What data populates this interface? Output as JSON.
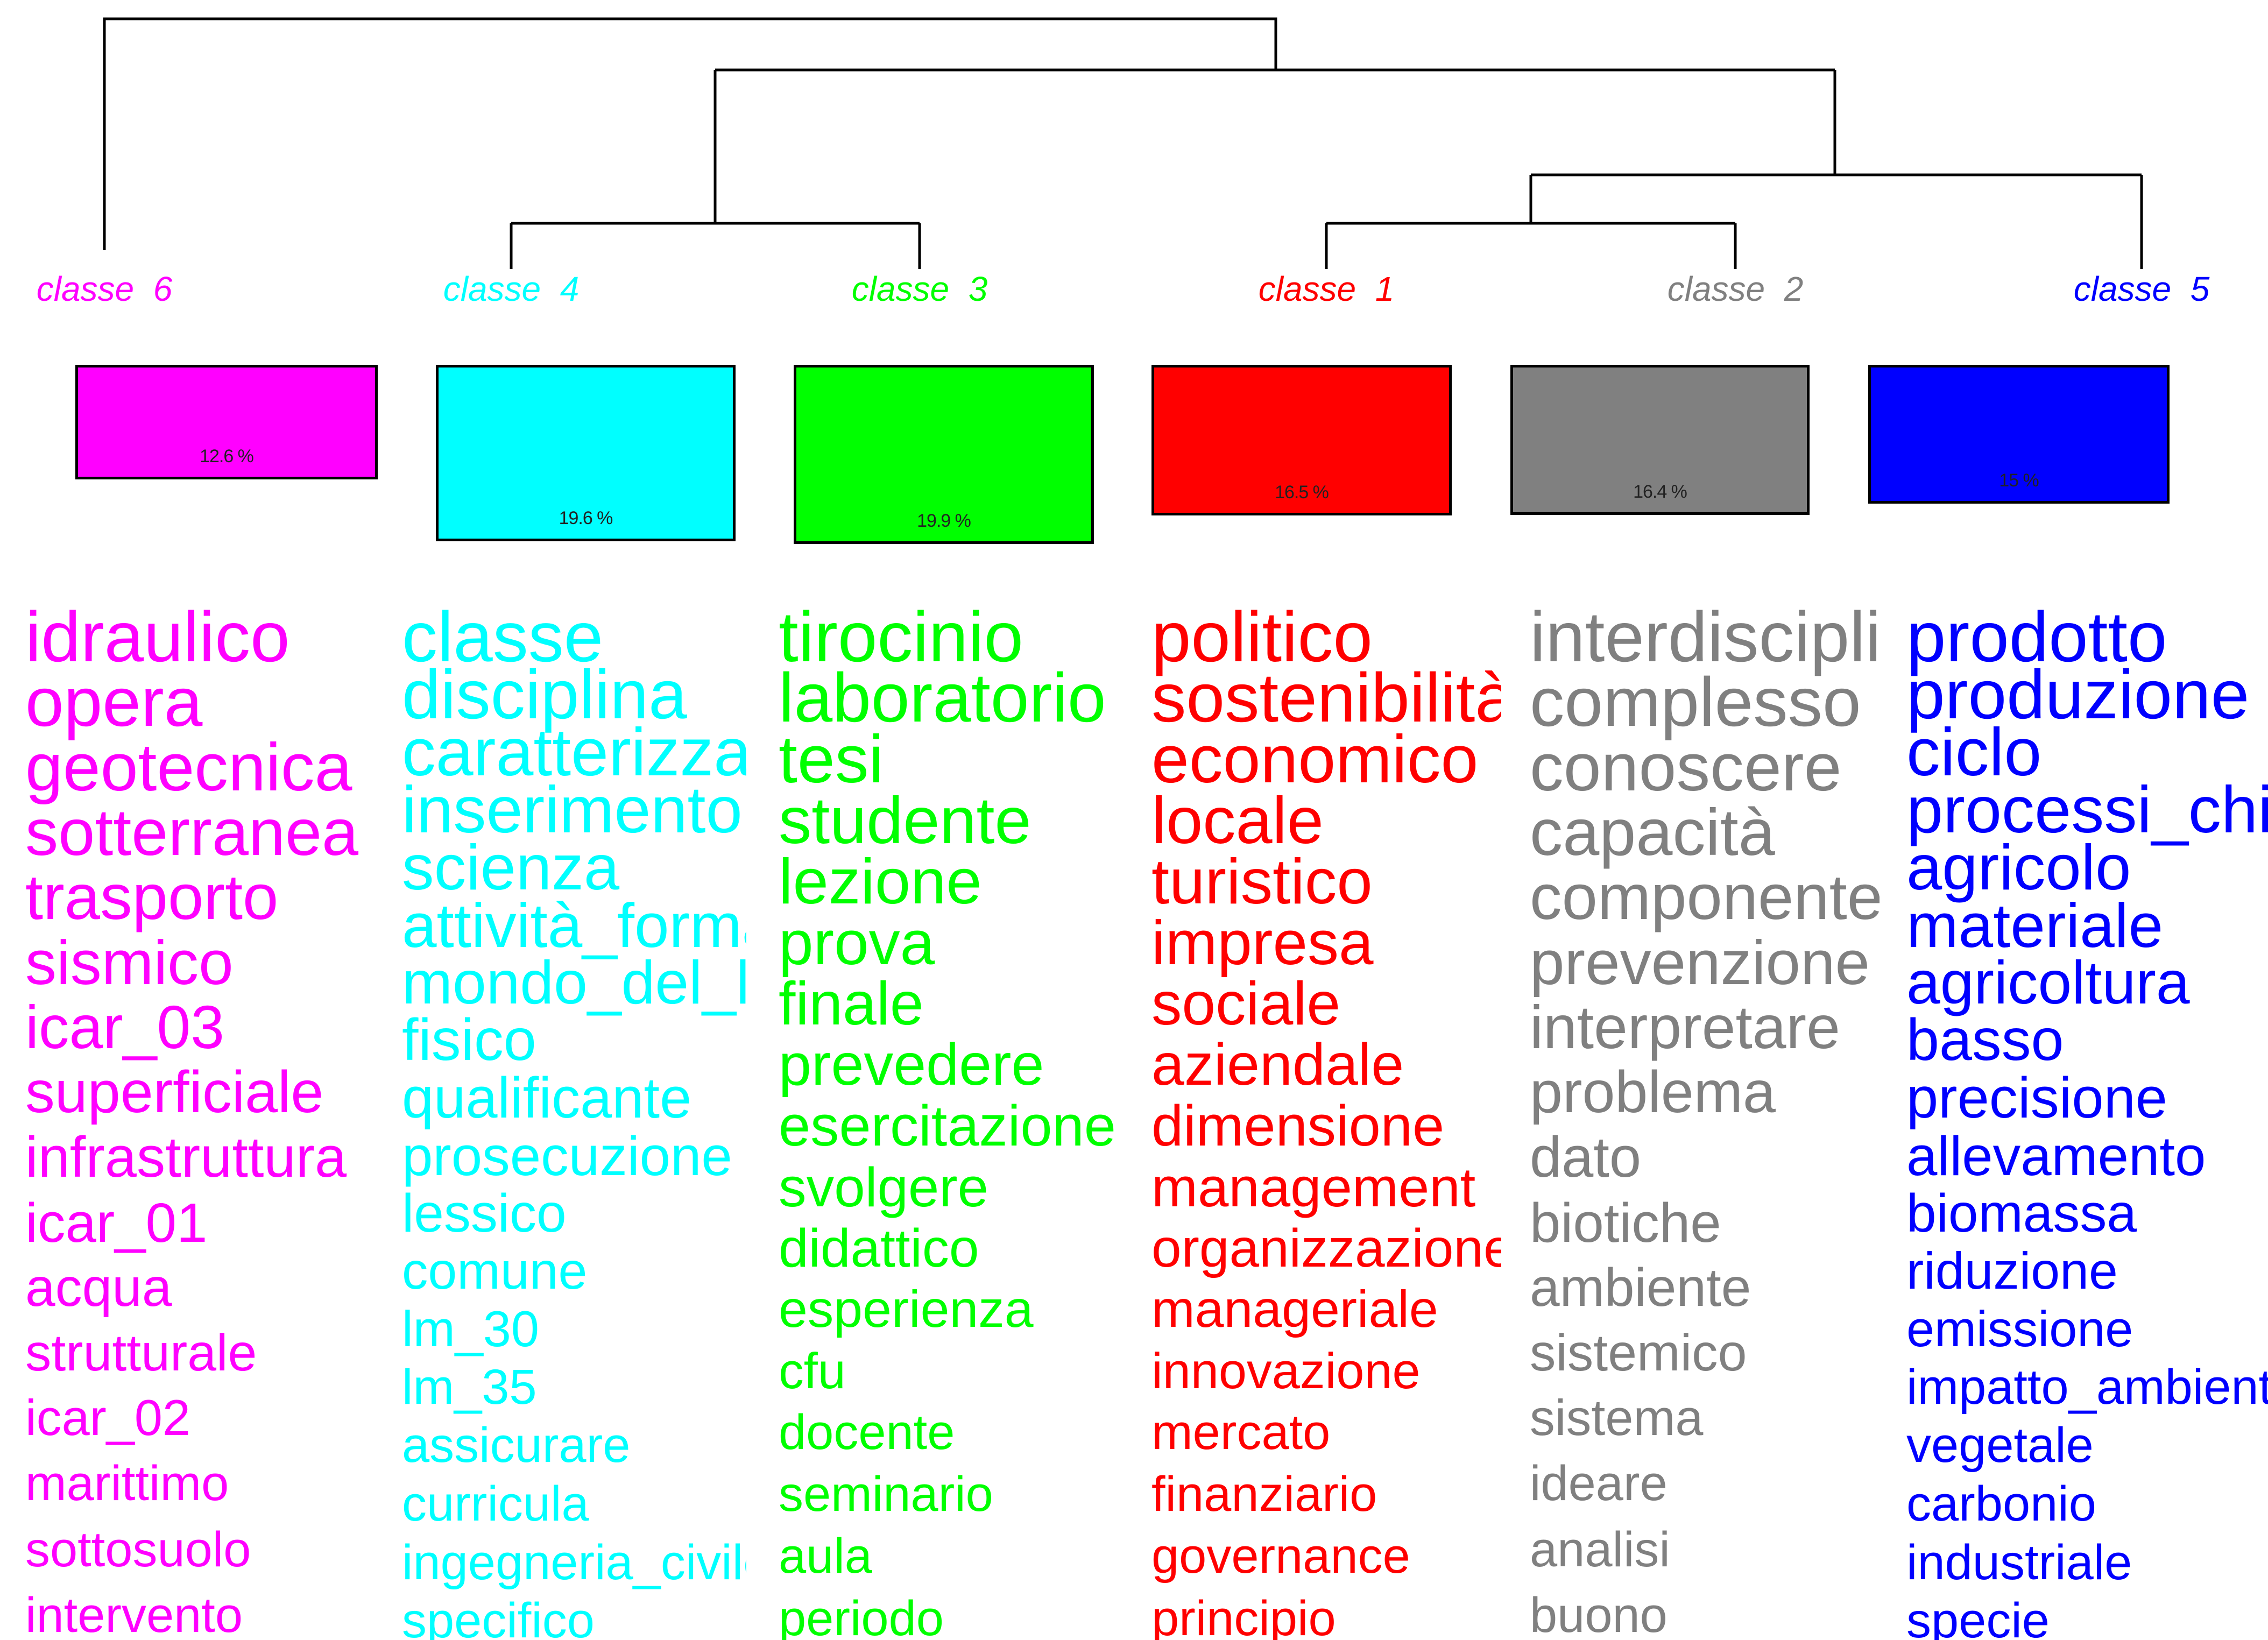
{
  "classes": [
    {
      "id": "6",
      "label": "classe  6",
      "color": "#ff00ff",
      "percent": "12.6 %",
      "words": [
        "idraulico",
        "opera",
        "geotecnica",
        "sotterranea",
        "trasporto",
        "sismico",
        "icar_03",
        "superficiale",
        "infrastruttura",
        "icar_01",
        "acqua",
        "strutturale",
        "icar_02",
        "marittimo",
        "sottosuolo",
        "intervento"
      ]
    },
    {
      "id": "4",
      "label": "classe  4",
      "color": "#00ffff",
      "percent": "19.6 %",
      "words": [
        "classe",
        "disciplina",
        "caratterizzare",
        "inserimento",
        "scienza",
        "attività_formativa",
        "mondo_del_lavoro",
        "fisico",
        "qualificante",
        "prosecuzione",
        "lessico",
        "comune",
        "lm_30",
        "lm_35",
        "assicurare",
        "curricula",
        "ingegneria_civile",
        "specifico"
      ]
    },
    {
      "id": "3",
      "label": "classe  3",
      "color": "#00ff00",
      "percent": "19.9 %",
      "words": [
        "tirocinio",
        "laboratorio",
        "tesi",
        "studente",
        "lezione",
        "prova",
        "finale",
        "prevedere",
        "esercitazione",
        "svolgere",
        "didattico",
        "esperienza",
        "cfu",
        "docente",
        "seminario",
        "aula",
        "periodo"
      ]
    },
    {
      "id": "1",
      "label": "classe  1",
      "color": "#ff0000",
      "percent": "16.5 %",
      "words": [
        "politico",
        "sostenibilità",
        "economico",
        "locale",
        "turistico",
        "impresa",
        "sociale",
        "aziendale",
        "dimensione",
        "management",
        "organizzazione",
        "manageriale",
        "innovazione",
        "mercato",
        "finanziario",
        "governance",
        "principio"
      ]
    },
    {
      "id": "2",
      "label": "classe  2",
      "color": "#808080",
      "percent": "16.4 %",
      "words": [
        "interdisciplinare",
        "complesso",
        "conoscere",
        "capacità",
        "componente",
        "prevenzione",
        "interpretare",
        "problema",
        "dato",
        "biotiche",
        "ambiente",
        "sistemico",
        "sistema",
        "ideare",
        "analisi",
        "buono"
      ]
    },
    {
      "id": "5",
      "label": "classe  5",
      "color": "#0000ff",
      "percent": "15 %",
      "words": [
        "prodotto",
        "produzione",
        "ciclo",
        "processi_chimici",
        "agricolo",
        "materiale",
        "agricoltura",
        "basso",
        "precisione",
        "allevamento",
        "biomassa",
        "riduzione",
        "emissione",
        "impatto_ambientale",
        "vegetale",
        "carbonio",
        "industriale",
        "specie"
      ]
    }
  ]
}
